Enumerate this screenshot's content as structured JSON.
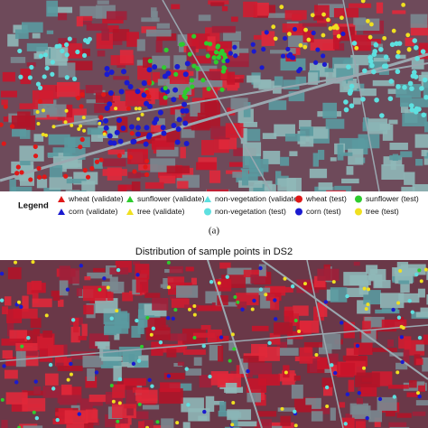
{
  "figure": {
    "legend": {
      "title": "Legend",
      "items": [
        "wheat (validate)",
        "sunflower (validate)",
        "non-vegetation (validate)",
        "wheat (test)",
        "sunflower (test)",
        "corn (validate)",
        "tree (validate)",
        "non-vegetation (test)",
        "corn (test)",
        "tree (test)"
      ]
    },
    "caption_a": "(a)",
    "panel_b_title": "Distribution of sample points in DS2"
  }
}
